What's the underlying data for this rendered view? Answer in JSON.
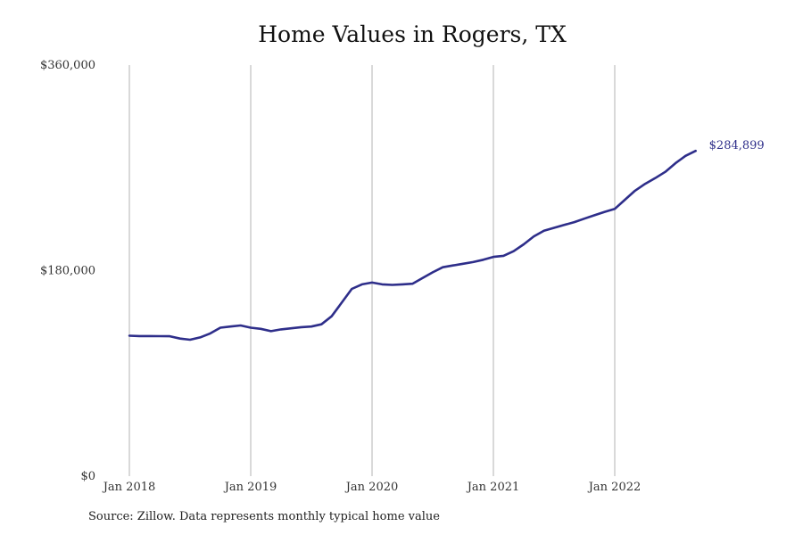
{
  "chart_data": {
    "type": "line",
    "title": "Home Values in Rogers, TX",
    "xlabel": "",
    "ylabel": "",
    "x_ticks": [
      "Jan 2018",
      "Jan 2019",
      "Jan 2020",
      "Jan 2021",
      "Jan 2022"
    ],
    "y_ticks": [
      "$0",
      "$180,000",
      "$360,000"
    ],
    "ylim": [
      0,
      360000
    ],
    "xlim": [
      "2018-01",
      "2022-09"
    ],
    "grid": "vertical lines at January ticks",
    "line_color": "#2e2e8a",
    "series": [
      {
        "x": [
          "2018-01",
          "2018-02",
          "2018-03",
          "2018-04",
          "2018-05",
          "2018-06",
          "2018-07",
          "2018-08",
          "2018-09",
          "2018-10",
          "2018-11",
          "2018-12",
          "2019-01",
          "2019-02",
          "2019-03",
          "2019-04",
          "2019-05",
          "2019-06",
          "2019-07",
          "2019-08",
          "2019-09",
          "2019-10",
          "2019-11",
          "2019-12",
          "2020-01",
          "2020-02",
          "2020-03",
          "2020-04",
          "2020-05",
          "2020-06",
          "2020-07",
          "2020-08",
          "2020-09",
          "2020-10",
          "2020-11",
          "2020-12",
          "2021-01",
          "2021-02",
          "2021-03",
          "2021-04",
          "2021-05",
          "2021-06",
          "2021-07",
          "2021-08",
          "2021-09",
          "2021-10",
          "2021-11",
          "2021-12",
          "2022-01",
          "2022-02",
          "2022-03",
          "2022-04",
          "2022-05",
          "2022-06",
          "2022-07",
          "2022-08",
          "2022-09"
        ],
        "values": [
          123000,
          122700,
          122700,
          122600,
          122500,
          120500,
          119500,
          121500,
          125000,
          130000,
          131000,
          132000,
          130000,
          129000,
          127000,
          128500,
          129500,
          130500,
          131000,
          133000,
          140000,
          152000,
          164000,
          168000,
          169500,
          168000,
          167500,
          168000,
          168500,
          173500,
          178500,
          183000,
          184500,
          186000,
          187500,
          189500,
          192000,
          193000,
          197000,
          203000,
          210000,
          215000,
          217500,
          220000,
          222500,
          225500,
          228500,
          231500,
          234000,
          242000,
          250000,
          256000,
          261000,
          266500,
          274000,
          280500,
          284899
        ]
      }
    ],
    "end_label": "$284,899"
  },
  "source_note": "Source: Zillow. Data represents monthly typical home value"
}
